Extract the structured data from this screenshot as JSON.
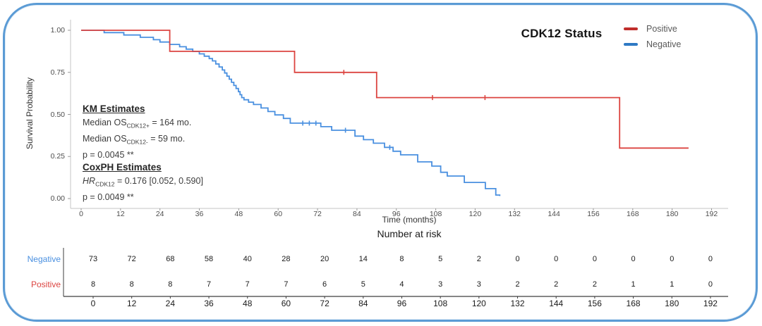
{
  "frame": {
    "border_color": "#5B9BD5"
  },
  "chart_data": {
    "type": "line",
    "subtype": "kaplan-meier-step",
    "title": "",
    "xlabel": "Time (months)",
    "ylabel": "Survival Probability",
    "xlim": [
      0,
      192
    ],
    "ylim": [
      0,
      1
    ],
    "grid": "off",
    "x_ticks": [
      0,
      12,
      24,
      36,
      48,
      60,
      72,
      84,
      96,
      108,
      120,
      132,
      144,
      156,
      168,
      180,
      192
    ],
    "y_tick_labels": [
      "1.00",
      "0.75",
      "0.50",
      "0.25",
      "0.00"
    ],
    "legend": {
      "title": "CDK12 Status",
      "position": "top-right",
      "items": [
        {
          "label": "Positive"
        },
        {
          "label": "Negative"
        }
      ]
    },
    "series": [
      {
        "name": "Positive",
        "line_color": "#DC4440",
        "swatch_color": "#C02E2B",
        "steps": [
          [
            0,
            1.0
          ],
          [
            27,
            0.875
          ],
          [
            65,
            0.75
          ],
          [
            90,
            0.6
          ],
          [
            164,
            0.3
          ],
          [
            185,
            0.3
          ]
        ],
        "censors": [
          [
            80,
            0.75
          ],
          [
            107,
            0.6
          ],
          [
            123,
            0.6
          ]
        ]
      },
      {
        "name": "Negative",
        "line_color": "#4A90E0",
        "swatch_color": "#2E79C4",
        "steps": [
          [
            0,
            1.0
          ],
          [
            7,
            0.986
          ],
          [
            13,
            0.972
          ],
          [
            18,
            0.958
          ],
          [
            22,
            0.944
          ],
          [
            24,
            0.93
          ],
          [
            27,
            0.916
          ],
          [
            30,
            0.902
          ],
          [
            32,
            0.888
          ],
          [
            34,
            0.874
          ],
          [
            36,
            0.86
          ],
          [
            37.5,
            0.846
          ],
          [
            39,
            0.832
          ],
          [
            40,
            0.818
          ],
          [
            41,
            0.8
          ],
          [
            42,
            0.782
          ],
          [
            43,
            0.764
          ],
          [
            43.7,
            0.746
          ],
          [
            44.4,
            0.727
          ],
          [
            45.1,
            0.709
          ],
          [
            45.8,
            0.691
          ],
          [
            46.5,
            0.672
          ],
          [
            47.2,
            0.654
          ],
          [
            47.9,
            0.635
          ],
          [
            48.4,
            0.617
          ],
          [
            48.9,
            0.6
          ],
          [
            49.6,
            0.587
          ],
          [
            51,
            0.573
          ],
          [
            52.5,
            0.559
          ],
          [
            54.8,
            0.538
          ],
          [
            56.9,
            0.517
          ],
          [
            59,
            0.497
          ],
          [
            61.6,
            0.476
          ],
          [
            63.7,
            0.448
          ],
          [
            73,
            0.427
          ],
          [
            76.3,
            0.406
          ],
          [
            83.4,
            0.371
          ],
          [
            86,
            0.35
          ],
          [
            89,
            0.329
          ],
          [
            92.4,
            0.304
          ],
          [
            95,
            0.281
          ],
          [
            97.3,
            0.26
          ],
          [
            102.5,
            0.218
          ],
          [
            106.8,
            0.193
          ],
          [
            109.5,
            0.156
          ],
          [
            111.5,
            0.134
          ],
          [
            116.7,
            0.096
          ],
          [
            123.1,
            0.059
          ],
          [
            126.3,
            0.021
          ],
          [
            127.5,
            0.015
          ]
        ],
        "censors": [
          [
            67.5,
            0.448
          ],
          [
            69.5,
            0.448
          ],
          [
            71.5,
            0.448
          ],
          [
            80.5,
            0.406
          ],
          [
            94,
            0.304
          ]
        ]
      }
    ]
  },
  "annotations": {
    "km": {
      "heading": "KM Estimates",
      "lines": [
        {
          "pre": "Median OS",
          "sub": "CDK12+",
          "post": " = 164 mo."
        },
        {
          "pre": "Median OS",
          "sub": "CDK12-",
          "post": " = 59 mo."
        },
        {
          "pre": "p = 0.0045 **",
          "sub": "",
          "post": ""
        }
      ]
    },
    "coxph": {
      "heading": "CoxPH Estimates",
      "lines": [
        {
          "pre": "HR",
          "italic": true,
          "sub": "CDK12",
          "post": " = 0.176 [0.052, 0.590]"
        },
        {
          "pre": "p = 0.0049 **",
          "sub": "",
          "post": ""
        }
      ]
    }
  },
  "risk_table": {
    "title": "Number at risk",
    "rows": [
      {
        "label": "Negative",
        "color": "#4A90E0",
        "counts": [
          73,
          72,
          68,
          58,
          40,
          28,
          20,
          14,
          8,
          5,
          2,
          0,
          0,
          0,
          0,
          0,
          0
        ]
      },
      {
        "label": "Positive",
        "color": "#DC4440",
        "counts": [
          8,
          8,
          8,
          7,
          7,
          7,
          6,
          5,
          4,
          3,
          3,
          2,
          2,
          2,
          1,
          1,
          0
        ]
      }
    ]
  }
}
